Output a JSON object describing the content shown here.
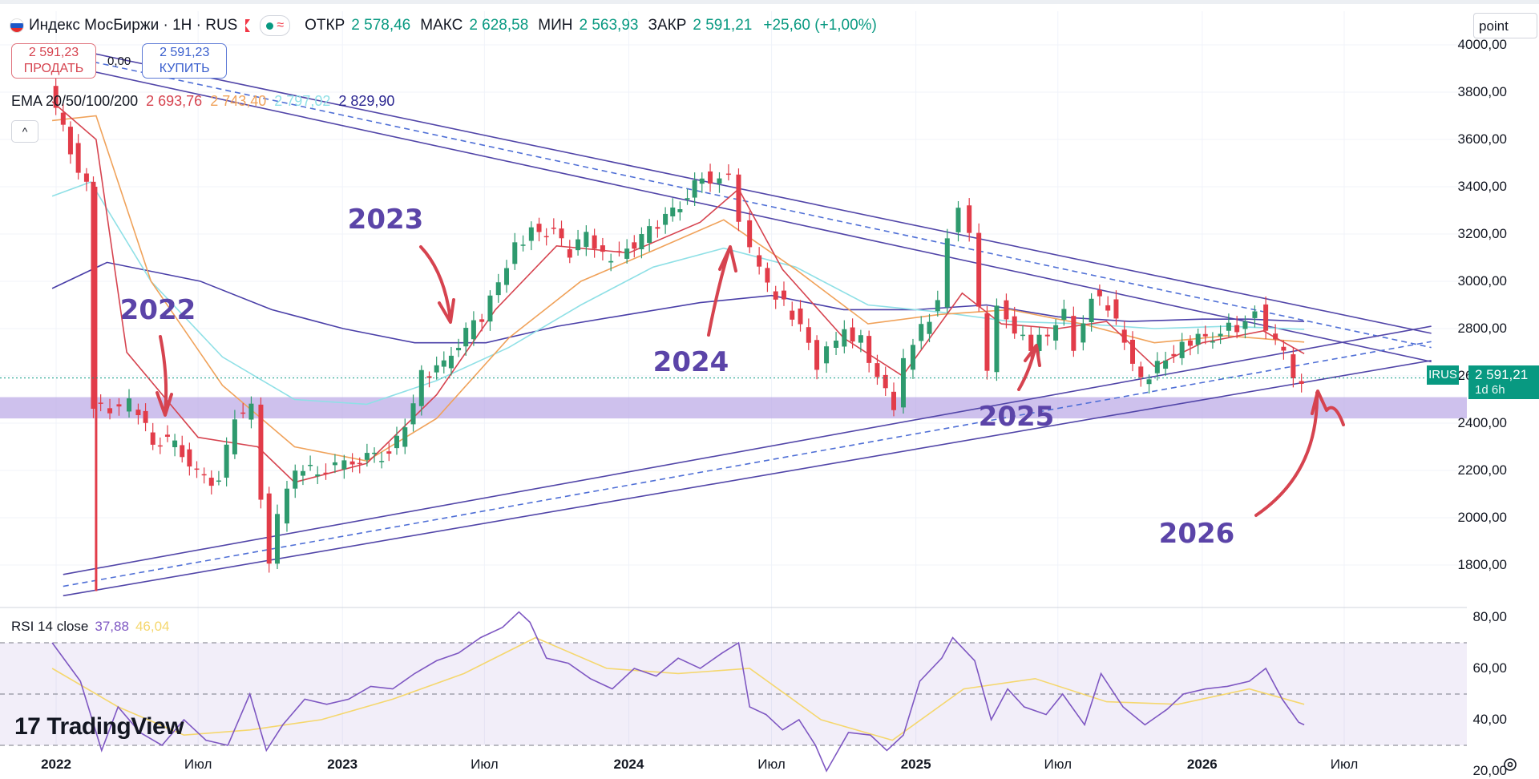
{
  "header": {
    "symbol_title": "Индекс МосБиржи · 1H · RUS",
    "open_label": "ОТКР",
    "open_value": "2 578,46",
    "high_label": "МАКС",
    "high_value": "2 628,58",
    "low_label": "МИН",
    "low_value": "2 563,93",
    "close_label": "ЗАКР",
    "close_value": "2 591,21",
    "change": "+25,60 (+1,00%)",
    "status_icon": "green-dot-icon",
    "wave_icon": "wave-icon",
    "flag_icon": "red-flag-icon"
  },
  "trade": {
    "sell_price": "2 591,23",
    "sell_label": "ПРОДАТЬ",
    "spread": "0,00",
    "buy_price": "2 591,23",
    "buy_label": "КУПИТЬ"
  },
  "ema": {
    "label": "EMA 20/50/100/200",
    "v20": "2 693,76",
    "v50": "2 743,40",
    "v100": "2 797,02",
    "v200": "2 829,90",
    "colors": {
      "ema20": "#d6434f",
      "ema50": "#f0a25a",
      "ema100": "#8fe0e6",
      "ema200": "#4a3fa8"
    }
  },
  "collapse_icon": "chevron-up-icon",
  "scale_mode": "point",
  "price_tag": {
    "ticker": "IRUS",
    "price": "2 591,21",
    "countdown": "1d 6h"
  },
  "rsi": {
    "label": "RSI 14 close",
    "value": "37,88",
    "ma_value": "46,04"
  },
  "branding": {
    "name": "TradingView",
    "logo_icon": "tv-logo-icon"
  },
  "settings_icon": "gear-icon",
  "annotations": [
    "2022",
    "2023",
    "2024",
    "2025",
    "2026"
  ],
  "chart_data": {
    "type": "candlestick",
    "title": "Индекс МосБиржи · 1H · RUS",
    "ylim": [
      1650,
      4050
    ],
    "y_ticks": [
      1800,
      2000,
      2200,
      2400,
      2600,
      2800,
      3000,
      3200,
      3400,
      3600,
      3800,
      4000
    ],
    "y_tick_labels": [
      "1800,00",
      "2000,00",
      "2200,00",
      "2400,00",
      "2600,00",
      "2800,00",
      "3000,00",
      "3200,00",
      "3400,00",
      "3600,00",
      "3800,00",
      "4000,00"
    ],
    "x_ticks": [
      "2022",
      "Июл",
      "2023",
      "Июл",
      "2024",
      "Июл",
      "2025",
      "Июл",
      "2026",
      "Июл"
    ],
    "x_tick_bold": [
      true,
      false,
      true,
      false,
      true,
      false,
      true,
      false,
      true,
      false
    ],
    "x_tick_dates": [
      "2022-01-01",
      "2022-07-01",
      "2023-01-01",
      "2023-07-01",
      "2024-01-01",
      "2024-07-01",
      "2025-01-01",
      "2025-07-01",
      "2026-01-01",
      "2026-07-01"
    ],
    "close_series": [
      [
        "2021-12-27",
        3810
      ],
      [
        "2022-01-24",
        3560
      ],
      [
        "2022-02-14",
        3400
      ],
      [
        "2022-02-21",
        2480
      ],
      [
        "2022-03-28",
        2460
      ],
      [
        "2022-04-11",
        2480
      ],
      [
        "2022-05-09",
        2330
      ],
      [
        "2022-06-06",
        2320
      ],
      [
        "2022-07-04",
        2180
      ],
      [
        "2022-08-01",
        2150
      ],
      [
        "2022-08-22",
        2420
      ],
      [
        "2022-09-12",
        2460
      ],
      [
        "2022-09-26",
        2100
      ],
      [
        "2022-10-03",
        1820
      ],
      [
        "2022-10-17",
        2000
      ],
      [
        "2022-11-07",
        2200
      ],
      [
        "2022-12-05",
        2200
      ],
      [
        "2023-01-09",
        2230
      ],
      [
        "2023-02-06",
        2250
      ],
      [
        "2023-03-06",
        2270
      ],
      [
        "2023-03-27",
        2380
      ],
      [
        "2023-04-17",
        2600
      ],
      [
        "2023-05-15",
        2650
      ],
      [
        "2023-06-12",
        2780
      ],
      [
        "2023-07-03",
        2850
      ],
      [
        "2023-07-24",
        2990
      ],
      [
        "2023-08-14",
        3140
      ],
      [
        "2023-09-04",
        3220
      ],
      [
        "2023-10-02",
        3200
      ],
      [
        "2023-10-23",
        3120
      ],
      [
        "2023-11-13",
        3200
      ],
      [
        "2023-12-04",
        3100
      ],
      [
        "2023-12-25",
        3120
      ],
      [
        "2024-01-22",
        3180
      ],
      [
        "2024-02-12",
        3240
      ],
      [
        "2024-03-11",
        3330
      ],
      [
        "2024-04-08",
        3440
      ],
      [
        "2024-05-13",
        3430
      ],
      [
        "2024-05-27",
        3250
      ],
      [
        "2024-06-10",
        3120
      ],
      [
        "2024-07-01",
        2980
      ],
      [
        "2024-07-22",
        2900
      ],
      [
        "2024-08-12",
        2820
      ],
      [
        "2024-09-02",
        2650
      ],
      [
        "2024-09-16",
        2700
      ],
      [
        "2024-10-07",
        2780
      ],
      [
        "2024-10-28",
        2750
      ],
      [
        "2024-11-18",
        2600
      ],
      [
        "2024-12-09",
        2480
      ],
      [
        "2024-12-23",
        2650
      ],
      [
        "2025-01-13",
        2800
      ],
      [
        "2025-02-03",
        2900
      ],
      [
        "2025-02-17",
        3200
      ],
      [
        "2025-03-03",
        3300
      ],
      [
        "2025-03-17",
        3180
      ],
      [
        "2025-04-07",
        2600
      ],
      [
        "2025-04-21",
        2920
      ],
      [
        "2025-05-12",
        2790
      ],
      [
        "2025-06-02",
        2730
      ],
      [
        "2025-06-23",
        2770
      ],
      [
        "2025-07-14",
        2860
      ],
      [
        "2025-07-28",
        2730
      ],
      [
        "2025-08-18",
        2940
      ],
      [
        "2025-09-08",
        2900
      ],
      [
        "2025-09-29",
        2740
      ],
      [
        "2025-10-20",
        2570
      ],
      [
        "2025-11-10",
        2650
      ],
      [
        "2025-12-01",
        2700
      ],
      [
        "2025-12-22",
        2750
      ],
      [
        "2026-01-19",
        2770
      ],
      [
        "2026-02-09",
        2800
      ],
      [
        "2026-03-02",
        2820
      ],
      [
        "2026-03-16",
        2880
      ],
      [
        "2026-03-30",
        2770
      ],
      [
        "2026-04-20",
        2700
      ],
      [
        "2026-05-04",
        2600
      ],
      [
        "2026-05-11",
        2591
      ]
    ],
    "ema200_series": [
      [
        "2021-12-27",
        2970
      ],
      [
        "2022-03-07",
        3080
      ],
      [
        "2022-07-04",
        3000
      ],
      [
        "2022-10-03",
        2880
      ],
      [
        "2023-01-02",
        2800
      ],
      [
        "2023-04-03",
        2740
      ],
      [
        "2023-07-03",
        2740
      ],
      [
        "2023-10-02",
        2810
      ],
      [
        "2024-01-01",
        2860
      ],
      [
        "2024-04-01",
        2910
      ],
      [
        "2024-07-01",
        2940
      ],
      [
        "2024-10-01",
        2880
      ],
      [
        "2025-01-01",
        2880
      ],
      [
        "2025-04-01",
        2900
      ],
      [
        "2025-07-01",
        2850
      ],
      [
        "2025-10-01",
        2830
      ],
      [
        "2026-01-01",
        2840
      ],
      [
        "2026-03-01",
        2840
      ],
      [
        "2026-05-11",
        2830
      ]
    ],
    "ema100_series": [
      [
        "2021-12-27",
        3360
      ],
      [
        "2022-02-14",
        3420
      ],
      [
        "2022-05-02",
        3000
      ],
      [
        "2022-08-01",
        2680
      ],
      [
        "2022-11-01",
        2500
      ],
      [
        "2023-02-01",
        2480
      ],
      [
        "2023-05-01",
        2580
      ],
      [
        "2023-08-01",
        2720
      ],
      [
        "2023-11-01",
        2900
      ],
      [
        "2024-02-01",
        3060
      ],
      [
        "2024-05-01",
        3140
      ],
      [
        "2024-08-01",
        3060
      ],
      [
        "2024-11-01",
        2900
      ],
      [
        "2025-02-01",
        2870
      ],
      [
        "2025-05-01",
        2830
      ],
      [
        "2025-08-01",
        2820
      ],
      [
        "2025-11-01",
        2800
      ],
      [
        "2026-02-01",
        2810
      ],
      [
        "2026-05-11",
        2797
      ]
    ],
    "ema50_series": [
      [
        "2021-12-27",
        3680
      ],
      [
        "2022-02-21",
        3700
      ],
      [
        "2022-05-02",
        3000
      ],
      [
        "2022-08-01",
        2560
      ],
      [
        "2022-11-01",
        2300
      ],
      [
        "2023-02-01",
        2240
      ],
      [
        "2023-05-01",
        2420
      ],
      [
        "2023-08-01",
        2760
      ],
      [
        "2023-11-01",
        3000
      ],
      [
        "2024-02-01",
        3130
      ],
      [
        "2024-05-01",
        3260
      ],
      [
        "2024-08-01",
        3050
      ],
      [
        "2024-11-01",
        2820
      ],
      [
        "2025-02-01",
        2860
      ],
      [
        "2025-05-01",
        2880
      ],
      [
        "2025-08-01",
        2820
      ],
      [
        "2025-11-01",
        2740
      ],
      [
        "2026-02-01",
        2770
      ],
      [
        "2026-05-11",
        2743
      ]
    ],
    "ema20_series": [
      [
        "2021-12-27",
        3760
      ],
      [
        "2022-02-21",
        3600
      ],
      [
        "2022-04-01",
        2700
      ],
      [
        "2022-07-01",
        2340
      ],
      [
        "2022-09-15",
        2300
      ],
      [
        "2022-11-01",
        2150
      ],
      [
        "2023-02-01",
        2230
      ],
      [
        "2023-05-01",
        2520
      ],
      [
        "2023-07-15",
        2880
      ],
      [
        "2023-10-01",
        3150
      ],
      [
        "2024-01-01",
        3120
      ],
      [
        "2024-04-01",
        3250
      ],
      [
        "2024-05-20",
        3390
      ],
      [
        "2024-07-15",
        3050
      ],
      [
        "2024-10-01",
        2760
      ],
      [
        "2024-12-15",
        2600
      ],
      [
        "2025-03-01",
        2950
      ],
      [
        "2025-04-20",
        2820
      ],
      [
        "2025-07-01",
        2800
      ],
      [
        "2025-09-01",
        2830
      ],
      [
        "2025-11-01",
        2640
      ],
      [
        "2026-01-01",
        2740
      ],
      [
        "2026-03-20",
        2790
      ],
      [
        "2026-05-11",
        2694
      ]
    ],
    "trendlines": [
      {
        "style": "solid",
        "from": [
          "2021-12-20",
          4005
        ],
        "to": [
          "2026-10-20",
          2780
        ]
      },
      {
        "style": "solid",
        "from": [
          "2021-12-20",
          3930
        ],
        "to": [
          "2026-10-20",
          2660
        ]
      },
      {
        "style": "dashed",
        "from": [
          "2021-12-20",
          3970
        ],
        "to": [
          "2026-10-20",
          2720
        ]
      },
      {
        "style": "solid",
        "from": [
          "2022-01-10",
          1760
        ],
        "to": [
          "2026-10-20",
          2810
        ]
      },
      {
        "style": "solid",
        "from": [
          "2022-01-10",
          1670
        ],
        "to": [
          "2026-10-20",
          2665
        ]
      },
      {
        "style": "dashed",
        "from": [
          "2022-01-10",
          1710
        ],
        "to": [
          "2026-10-20",
          2745
        ]
      }
    ],
    "support_zone": [
      2420,
      2510
    ],
    "last_price": 2591.21,
    "rsi": {
      "ylim": [
        14,
        86
      ],
      "y_ticks": [
        20,
        40,
        60,
        80
      ],
      "y_tick_labels": [
        "20,00",
        "40,00",
        "60,00",
        "80,00"
      ],
      "band": [
        30,
        70
      ],
      "mid": 50,
      "series": [
        [
          "2021-12-27",
          70
        ],
        [
          "2022-02-01",
          55
        ],
        [
          "2022-02-28",
          28
        ],
        [
          "2022-03-21",
          45
        ],
        [
          "2022-04-18",
          35
        ],
        [
          "2022-05-16",
          30
        ],
        [
          "2022-06-13",
          40
        ],
        [
          "2022-07-11",
          32
        ],
        [
          "2022-08-08",
          30
        ],
        [
          "2022-09-05",
          50
        ],
        [
          "2022-09-26",
          28
        ],
        [
          "2022-10-17",
          38
        ],
        [
          "2022-11-14",
          48
        ],
        [
          "2022-12-12",
          46
        ],
        [
          "2023-01-09",
          48
        ],
        [
          "2023-02-06",
          53
        ],
        [
          "2023-03-06",
          52
        ],
        [
          "2023-04-03",
          58
        ],
        [
          "2023-05-01",
          63
        ],
        [
          "2023-05-29",
          66
        ],
        [
          "2023-06-26",
          72
        ],
        [
          "2023-07-24",
          76
        ],
        [
          "2023-08-14",
          82
        ],
        [
          "2023-08-28",
          78
        ],
        [
          "2023-09-18",
          64
        ],
        [
          "2023-10-16",
          62
        ],
        [
          "2023-11-13",
          56
        ],
        [
          "2023-12-11",
          52
        ],
        [
          "2024-01-08",
          60
        ],
        [
          "2024-02-05",
          57
        ],
        [
          "2024-03-04",
          64
        ],
        [
          "2024-04-01",
          60
        ],
        [
          "2024-04-29",
          66
        ],
        [
          "2024-05-20",
          70
        ],
        [
          "2024-06-03",
          45
        ],
        [
          "2024-06-24",
          42
        ],
        [
          "2024-07-15",
          36
        ],
        [
          "2024-08-05",
          40
        ],
        [
          "2024-08-26",
          30
        ],
        [
          "2024-09-09",
          20
        ],
        [
          "2024-10-07",
          35
        ],
        [
          "2024-11-04",
          34
        ],
        [
          "2024-11-25",
          28
        ],
        [
          "2024-12-16",
          34
        ],
        [
          "2025-01-06",
          55
        ],
        [
          "2025-02-03",
          64
        ],
        [
          "2025-02-17",
          72
        ],
        [
          "2025-03-17",
          63
        ],
        [
          "2025-04-07",
          40
        ],
        [
          "2025-04-28",
          52
        ],
        [
          "2025-05-19",
          45
        ],
        [
          "2025-06-16",
          42
        ],
        [
          "2025-07-07",
          50
        ],
        [
          "2025-08-04",
          38
        ],
        [
          "2025-08-25",
          58
        ],
        [
          "2025-09-22",
          45
        ],
        [
          "2025-10-20",
          38
        ],
        [
          "2025-11-17",
          44
        ],
        [
          "2025-12-08",
          50
        ],
        [
          "2026-01-05",
          52
        ],
        [
          "2026-02-02",
          53
        ],
        [
          "2026-03-02",
          55
        ],
        [
          "2026-03-23",
          60
        ],
        [
          "2026-04-13",
          48
        ],
        [
          "2026-05-04",
          39
        ],
        [
          "2026-05-11",
          38
        ]
      ],
      "ma_series": [
        [
          "2021-12-27",
          60
        ],
        [
          "2022-03-21",
          45
        ],
        [
          "2022-06-13",
          34
        ],
        [
          "2022-09-05",
          36
        ],
        [
          "2022-12-05",
          40
        ],
        [
          "2023-03-06",
          48
        ],
        [
          "2023-06-05",
          58
        ],
        [
          "2023-09-04",
          72
        ],
        [
          "2023-12-04",
          60
        ],
        [
          "2024-03-04",
          58
        ],
        [
          "2024-06-03",
          60
        ],
        [
          "2024-09-02",
          40
        ],
        [
          "2024-12-02",
          32
        ],
        [
          "2025-03-03",
          52
        ],
        [
          "2025-06-02",
          56
        ],
        [
          "2025-09-01",
          47
        ],
        [
          "2025-12-01",
          46
        ],
        [
          "2026-03-02",
          52
        ],
        [
          "2026-05-11",
          46
        ]
      ]
    }
  }
}
